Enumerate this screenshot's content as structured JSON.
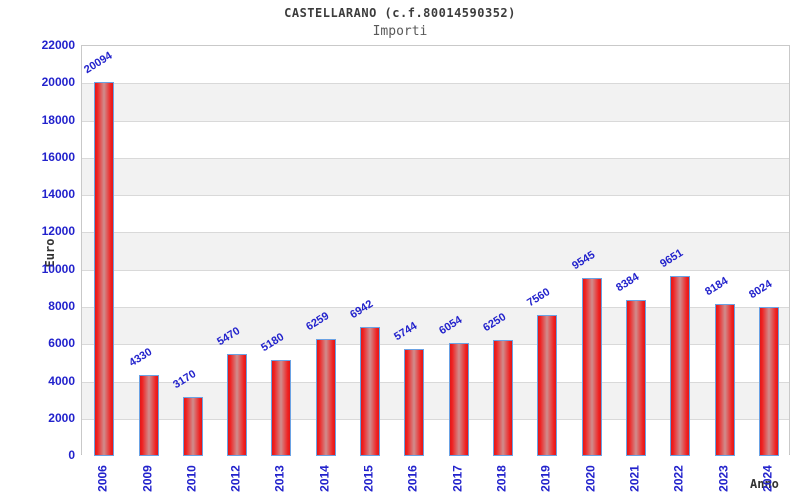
{
  "header": {
    "title": "CASTELLARANO (c.f.80014590352)",
    "subtitle": "Importi"
  },
  "chart_data": {
    "type": "bar",
    "title": "CASTELLARANO (c.f.80014590352)",
    "subtitle": "Importi",
    "xlabel": "Anno",
    "ylabel": "Euro",
    "categories": [
      "2006",
      "2009",
      "2010",
      "2012",
      "2013",
      "2014",
      "2015",
      "2016",
      "2017",
      "2018",
      "2019",
      "2020",
      "2021",
      "2022",
      "2023",
      "2024"
    ],
    "values": [
      20094,
      4330,
      3170,
      5470,
      5180,
      6259,
      6942,
      5744,
      6054,
      6250,
      7560,
      9545,
      8384,
      9651,
      8184,
      8024
    ],
    "ylim": [
      0,
      22000
    ],
    "ytick_step": 2000,
    "yticks": [
      0,
      2000,
      4000,
      6000,
      8000,
      10000,
      12000,
      14000,
      16000,
      18000,
      20000,
      22000
    ],
    "grid": "horizontal gridlines with alternating white/gray bands",
    "legend": "none",
    "bar_value_labels": "rotated, above each bar",
    "colors": {
      "bar_edge_red": "#e01818",
      "bar_center": "#d08d8d",
      "bar_border_blue": "#6aa2e4",
      "label_blue": "#2222cc",
      "band_gray": "#f2f2f2",
      "gridline": "#d9d9d9",
      "plot_border": "#c9c9c9",
      "title_color": "#3c3c3c"
    }
  }
}
